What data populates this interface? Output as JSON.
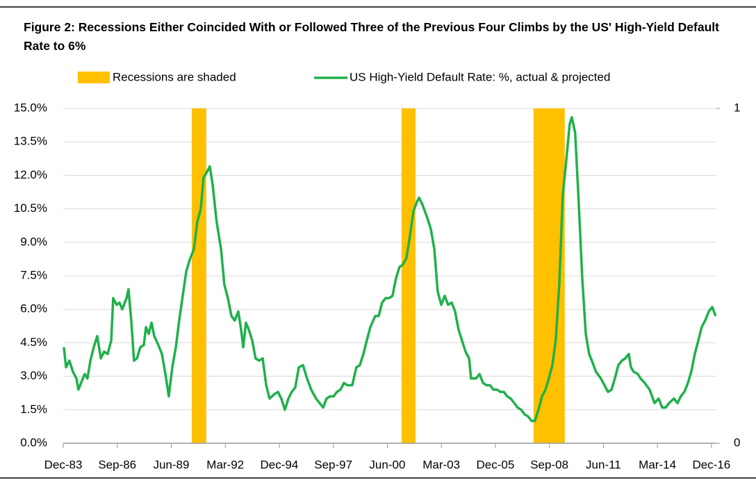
{
  "chart_data": {
    "type": "line",
    "title": "Figure 2: Recessions Either Coincided With or Followed Three of the Previous Four Climbs by the US' High-Yield Default Rate to 6%",
    "xlim": [
      1983.917,
      2017.17
    ],
    "xticks": [
      {
        "value": 1983.917,
        "label": "Dec-83"
      },
      {
        "value": 1986.667,
        "label": "Sep-86"
      },
      {
        "value": 1989.417,
        "label": "Jun-89"
      },
      {
        "value": 1992.167,
        "label": "Mar-92"
      },
      {
        "value": 1994.917,
        "label": "Dec-94"
      },
      {
        "value": 1997.667,
        "label": "Sep-97"
      },
      {
        "value": 2000.417,
        "label": "Jun-00"
      },
      {
        "value": 2003.167,
        "label": "Mar-03"
      },
      {
        "value": 2005.917,
        "label": "Dec-05"
      },
      {
        "value": 2008.667,
        "label": "Sep-08"
      },
      {
        "value": 2011.417,
        "label": "Jun-11"
      },
      {
        "value": 2014.167,
        "label": "Mar-14"
      },
      {
        "value": 2016.917,
        "label": "Dec-16"
      }
    ],
    "ylim": [
      0,
      15
    ],
    "yticks": [
      {
        "value": 0,
        "label": "0.0%"
      },
      {
        "value": 1.5,
        "label": "1.5%"
      },
      {
        "value": 3,
        "label": "3.0%"
      },
      {
        "value": 4.5,
        "label": "4.5%"
      },
      {
        "value": 6,
        "label": "6.0%"
      },
      {
        "value": 7.5,
        "label": "7.5%"
      },
      {
        "value": 9,
        "label": "9.0%"
      },
      {
        "value": 10.5,
        "label": "10.5%"
      },
      {
        "value": 12,
        "label": "12.0%"
      },
      {
        "value": 13.5,
        "label": "13.5%"
      },
      {
        "value": 15,
        "label": "15.0%"
      }
    ],
    "y2lim": [
      0,
      1
    ],
    "y2ticks": [
      0,
      1
    ],
    "grid": true,
    "legend": "top",
    "series": [
      {
        "name": "Recessions are shaded",
        "type": "bar",
        "axis": "y2",
        "color": "#ffc000",
        "x_start": [
          1990.46,
          2001.14,
          2007.86
        ],
        "x_end": [
          1991.2,
          2001.85,
          2009.45
        ],
        "values": [
          1,
          1,
          1
        ]
      },
      {
        "name": "US High-Yield Default Rate: %, actual & projected",
        "type": "line",
        "color": "#1fb04b",
        "x": [
          1983.95,
          1984.06,
          1984.23,
          1984.41,
          1984.59,
          1984.69,
          1984.87,
          1985.01,
          1985.15,
          1985.3,
          1985.47,
          1985.65,
          1985.83,
          1986.0,
          1986.18,
          1986.36,
          1986.46,
          1986.64,
          1986.78,
          1986.92,
          1987.14,
          1987.24,
          1987.38,
          1987.52,
          1987.67,
          1987.84,
          1988.02,
          1988.13,
          1988.27,
          1988.41,
          1988.55,
          1988.76,
          1988.94,
          1989.12,
          1989.29,
          1989.47,
          1989.65,
          1989.82,
          1990.0,
          1990.18,
          1990.35,
          1990.57,
          1990.74,
          1990.92,
          1991.06,
          1991.2,
          1991.38,
          1991.52,
          1991.73,
          1991.95,
          1992.12,
          1992.3,
          1992.48,
          1992.65,
          1992.83,
          1992.97,
          1993.08,
          1993.22,
          1993.36,
          1993.54,
          1993.71,
          1993.89,
          1994.07,
          1994.25,
          1994.42,
          1994.67,
          1994.85,
          1995.02,
          1995.2,
          1995.38,
          1995.55,
          1995.73,
          1995.91,
          1996.12,
          1996.33,
          1996.54,
          1996.79,
          1996.97,
          1997.15,
          1997.32,
          1997.5,
          1997.68,
          1997.85,
          1998.03,
          1998.21,
          1998.38,
          1998.63,
          1998.84,
          1999.02,
          1999.2,
          1999.37,
          1999.55,
          1999.8,
          1999.98,
          2000.15,
          2000.33,
          2000.51,
          2000.68,
          2000.86,
          2001.04,
          2001.21,
          2001.39,
          2001.57,
          2001.75,
          2001.92,
          2002.03,
          2002.2,
          2002.45,
          2002.63,
          2002.81,
          2002.98,
          2003.16,
          2003.34,
          2003.51,
          2003.69,
          2003.87,
          2004.04,
          2004.22,
          2004.4,
          2004.58,
          2004.68,
          2004.93,
          2005.11,
          2005.29,
          2005.46,
          2005.64,
          2005.82,
          2006.0,
          2006.17,
          2006.35,
          2006.52,
          2006.7,
          2006.88,
          2007.05,
          2007.23,
          2007.4,
          2007.58,
          2007.76,
          2007.93,
          2008.11,
          2008.29,
          2008.47,
          2008.64,
          2008.82,
          2008.99,
          2009.17,
          2009.35,
          2009.53,
          2009.7,
          2009.81,
          2009.98,
          2010.16,
          2010.34,
          2010.52,
          2010.69,
          2010.83,
          2011.04,
          2011.29,
          2011.47,
          2011.65,
          2011.83,
          2012.0,
          2012.18,
          2012.36,
          2012.53,
          2012.71,
          2012.82,
          2012.96,
          2013.17,
          2013.31,
          2013.52,
          2013.77,
          2014.02,
          2014.23,
          2014.41,
          2014.59,
          2014.76,
          2015.01,
          2015.19,
          2015.36,
          2015.54,
          2015.72,
          2015.89,
          2016.07,
          2016.25,
          2016.42,
          2016.6,
          2016.78,
          2016.96,
          2017.13
        ],
        "values": [
          4.3,
          3.4,
          3.7,
          3.2,
          2.9,
          2.4,
          2.8,
          3.1,
          2.9,
          3.7,
          4.3,
          4.8,
          3.8,
          4.1,
          4.0,
          4.6,
          6.5,
          6.2,
          6.3,
          6.0,
          6.5,
          6.9,
          5.5,
          3.7,
          3.8,
          4.3,
          4.4,
          5.2,
          4.9,
          5.4,
          4.8,
          4.4,
          4.0,
          3.1,
          2.1,
          3.4,
          4.3,
          5.5,
          6.6,
          7.7,
          8.2,
          8.7,
          9.9,
          10.5,
          11.9,
          12.1,
          12.4,
          11.6,
          9.9,
          8.7,
          7.1,
          6.5,
          5.7,
          5.5,
          5.9,
          5.1,
          4.3,
          5.4,
          5.1,
          4.6,
          3.8,
          3.7,
          3.8,
          2.6,
          2.0,
          2.2,
          2.3,
          2.0,
          1.5,
          2.0,
          2.3,
          2.5,
          3.4,
          3.5,
          2.9,
          2.4,
          2.0,
          1.8,
          1.6,
          2.0,
          2.1,
          2.1,
          2.3,
          2.4,
          2.7,
          2.6,
          2.6,
          3.4,
          3.5,
          4.0,
          4.6,
          5.2,
          5.7,
          5.7,
          6.3,
          6.5,
          6.5,
          6.6,
          7.4,
          7.9,
          8.0,
          8.3,
          9.3,
          10.4,
          10.8,
          11.0,
          10.7,
          10.1,
          9.6,
          8.7,
          6.8,
          6.2,
          6.6,
          6.2,
          6.3,
          5.9,
          5.1,
          4.6,
          4.1,
          3.8,
          2.9,
          2.9,
          3.1,
          2.7,
          2.6,
          2.6,
          2.4,
          2.4,
          2.3,
          2.3,
          2.1,
          2.0,
          1.8,
          1.6,
          1.5,
          1.3,
          1.2,
          1.0,
          1.0,
          1.5,
          2.1,
          2.4,
          2.9,
          3.5,
          4.6,
          7.1,
          11.1,
          12.7,
          14.3,
          14.6,
          13.9,
          10.8,
          7.4,
          4.9,
          4.0,
          3.7,
          3.2,
          2.9,
          2.6,
          2.3,
          2.4,
          2.9,
          3.5,
          3.7,
          3.8,
          4.0,
          3.4,
          3.2,
          3.1,
          2.9,
          2.7,
          2.4,
          1.8,
          2.0,
          1.6,
          1.6,
          1.8,
          2.0,
          1.8,
          2.1,
          2.3,
          2.7,
          3.2,
          4.0,
          4.6,
          5.2,
          5.5,
          5.9,
          6.1,
          5.7
        ]
      }
    ]
  }
}
